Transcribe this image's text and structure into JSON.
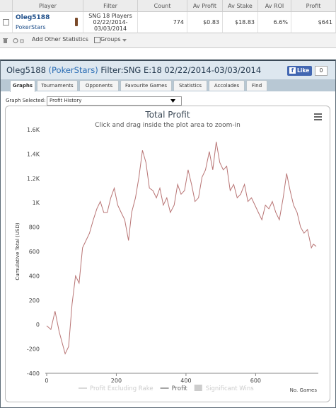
{
  "table": {
    "headers": [
      "Player",
      "Filter",
      "Count",
      "Av Profit",
      "Av Stake",
      "Av ROI",
      "Profit"
    ],
    "row": {
      "player": "Oleg5188",
      "site": "PokerStars",
      "filter": "SNG 18 Players 02/22/2014-03/03/2014",
      "count": 774,
      "av_profit": "$0.83",
      "av_stake": "$18.83",
      "av_roi": "6.6%",
      "profit": "$641"
    }
  },
  "toolbar": {
    "add_stats": "Add Other Statistics",
    "groups": "Groups"
  },
  "panel": {
    "player": "Oleg5188",
    "site": "(PokerStars)",
    "filter": "Filter:SNG E:18 02/22/2014-03/03/2014",
    "like": "Like",
    "like_count": 0,
    "tabs": [
      "Graphs",
      "Tournaments",
      "Opponents",
      "Favourite Games",
      "Statistics",
      "Accolades",
      "Find"
    ],
    "graph_label": "Graph Selected:",
    "graph_value": "Profit History"
  },
  "chart_data": {
    "type": "line",
    "title": "Total Profit",
    "subtitle": "Click and drag inside the plot area to zoom-in",
    "y_label": "Cumulative Total (USD)",
    "x_label": "No. Games",
    "x": [
      0,
      12,
      24,
      36,
      53,
      63,
      73,
      83,
      93,
      103,
      113,
      123,
      134,
      144,
      154,
      164,
      174,
      184,
      194,
      204,
      214,
      224,
      235,
      244,
      255,
      265,
      275,
      285,
      295,
      305,
      315,
      325,
      335,
      345,
      355,
      366,
      376,
      386,
      396,
      406,
      416,
      426,
      436,
      446,
      456,
      467,
      477,
      487,
      497,
      507,
      517,
      527,
      537,
      547,
      557,
      568,
      578,
      588,
      598,
      608,
      618,
      628,
      638,
      648,
      658,
      668,
      679,
      689,
      699,
      709,
      719,
      729,
      739,
      749,
      760,
      766,
      774
    ],
    "series": [
      {
        "name": "Profit",
        "color": "#b87474",
        "values": [
          -10,
          -40,
          110,
          -60,
          -240,
          -180,
          170,
          400,
          340,
          630,
          690,
          750,
          860,
          950,
          1010,
          920,
          920,
          1040,
          1120,
          980,
          920,
          860,
          690,
          920,
          1040,
          1210,
          1430,
          1330,
          1120,
          1100,
          1040,
          1120,
          980,
          1040,
          920,
          980,
          1150,
          1070,
          1100,
          1270,
          1150,
          1010,
          1040,
          1210,
          1270,
          1420,
          1270,
          1500,
          1330,
          1270,
          1300,
          1100,
          1150,
          1040,
          1070,
          1150,
          1010,
          1040,
          980,
          920,
          860,
          980,
          950,
          1010,
          920,
          860,
          1040,
          1240,
          1100,
          980,
          920,
          800,
          750,
          780,
          630,
          660,
          641
        ]
      }
    ],
    "legend_hidden": [
      "Profit Excluding Rake",
      "Significant Wins"
    ],
    "xlim": [
      -4,
      780
    ],
    "ylim": [
      -400,
      1600
    ],
    "xticks": [
      0,
      200,
      400,
      600
    ],
    "yticks": [
      -400,
      -200,
      0,
      200,
      400,
      600,
      800,
      {
        "value": 1000,
        "label": "1K"
      },
      {
        "value": 1200,
        "label": "1.2K"
      },
      {
        "value": 1400,
        "label": "1.4K"
      },
      {
        "value": 1600,
        "label": "1.6K"
      }
    ],
    "grid": false
  }
}
